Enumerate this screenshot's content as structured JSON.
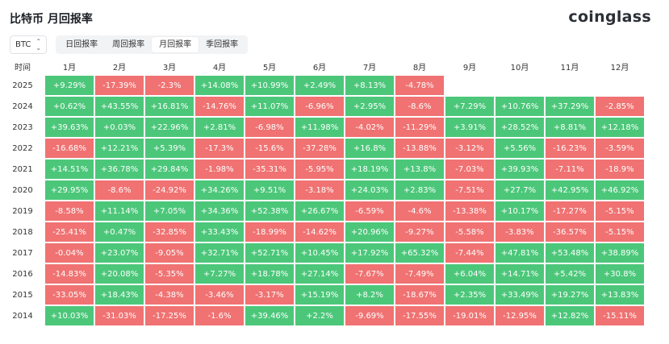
{
  "header": {
    "title": "比特币 月回报率",
    "logo": "coinglass"
  },
  "toolbar": {
    "coin": "BTC",
    "tabs": [
      "日回报率",
      "周回报率",
      "月回报率",
      "季回报率"
    ],
    "active_tab": "月回报率"
  },
  "colors": {
    "positive": "#4cc77a",
    "negative": "#f07272"
  },
  "table": {
    "columns": [
      "时间",
      "1月",
      "2月",
      "3月",
      "4月",
      "5月",
      "6月",
      "7月",
      "8月",
      "9月",
      "10月",
      "11月",
      "12月"
    ],
    "rows": [
      {
        "year": "2025",
        "values": [
          "+9.29%",
          "-17.39%",
          "-2.3%",
          "+14.08%",
          "+10.99%",
          "+2.49%",
          "+8.13%",
          "-4.78%",
          "",
          "",
          "",
          ""
        ]
      },
      {
        "year": "2024",
        "values": [
          "+0.62%",
          "+43.55%",
          "+16.81%",
          "-14.76%",
          "+11.07%",
          "-6.96%",
          "+2.95%",
          "-8.6%",
          "+7.29%",
          "+10.76%",
          "+37.29%",
          "-2.85%"
        ]
      },
      {
        "year": "2023",
        "values": [
          "+39.63%",
          "+0.03%",
          "+22.96%",
          "+2.81%",
          "-6.98%",
          "+11.98%",
          "-4.02%",
          "-11.29%",
          "+3.91%",
          "+28.52%",
          "+8.81%",
          "+12.18%"
        ]
      },
      {
        "year": "2022",
        "values": [
          "-16.68%",
          "+12.21%",
          "+5.39%",
          "-17.3%",
          "-15.6%",
          "-37.28%",
          "+16.8%",
          "-13.88%",
          "-3.12%",
          "+5.56%",
          "-16.23%",
          "-3.59%"
        ]
      },
      {
        "year": "2021",
        "values": [
          "+14.51%",
          "+36.78%",
          "+29.84%",
          "-1.98%",
          "-35.31%",
          "-5.95%",
          "+18.19%",
          "+13.8%",
          "-7.03%",
          "+39.93%",
          "-7.11%",
          "-18.9%"
        ]
      },
      {
        "year": "2020",
        "values": [
          "+29.95%",
          "-8.6%",
          "-24.92%",
          "+34.26%",
          "+9.51%",
          "-3.18%",
          "+24.03%",
          "+2.83%",
          "-7.51%",
          "+27.7%",
          "+42.95%",
          "+46.92%"
        ]
      },
      {
        "year": "2019",
        "values": [
          "-8.58%",
          "+11.14%",
          "+7.05%",
          "+34.36%",
          "+52.38%",
          "+26.67%",
          "-6.59%",
          "-4.6%",
          "-13.38%",
          "+10.17%",
          "-17.27%",
          "-5.15%"
        ]
      },
      {
        "year": "2018",
        "values": [
          "-25.41%",
          "+0.47%",
          "-32.85%",
          "+33.43%",
          "-18.99%",
          "-14.62%",
          "+20.96%",
          "-9.27%",
          "-5.58%",
          "-3.83%",
          "-36.57%",
          "-5.15%"
        ]
      },
      {
        "year": "2017",
        "values": [
          "-0.04%",
          "+23.07%",
          "-9.05%",
          "+32.71%",
          "+52.71%",
          "+10.45%",
          "+17.92%",
          "+65.32%",
          "-7.44%",
          "+47.81%",
          "+53.48%",
          "+38.89%"
        ]
      },
      {
        "year": "2016",
        "values": [
          "-14.83%",
          "+20.08%",
          "-5.35%",
          "+7.27%",
          "+18.78%",
          "+27.14%",
          "-7.67%",
          "-7.49%",
          "+6.04%",
          "+14.71%",
          "+5.42%",
          "+30.8%"
        ]
      },
      {
        "year": "2015",
        "values": [
          "-33.05%",
          "+18.43%",
          "-4.38%",
          "-3.46%",
          "-3.17%",
          "+15.19%",
          "+8.2%",
          "-18.67%",
          "+2.35%",
          "+33.49%",
          "+19.27%",
          "+13.83%"
        ]
      },
      {
        "year": "2014",
        "values": [
          "+10.03%",
          "-31.03%",
          "-17.25%",
          "-1.6%",
          "+39.46%",
          "+2.2%",
          "-9.69%",
          "-17.55%",
          "-19.01%",
          "-12.95%",
          "+12.82%",
          "-15.11%"
        ]
      }
    ]
  }
}
